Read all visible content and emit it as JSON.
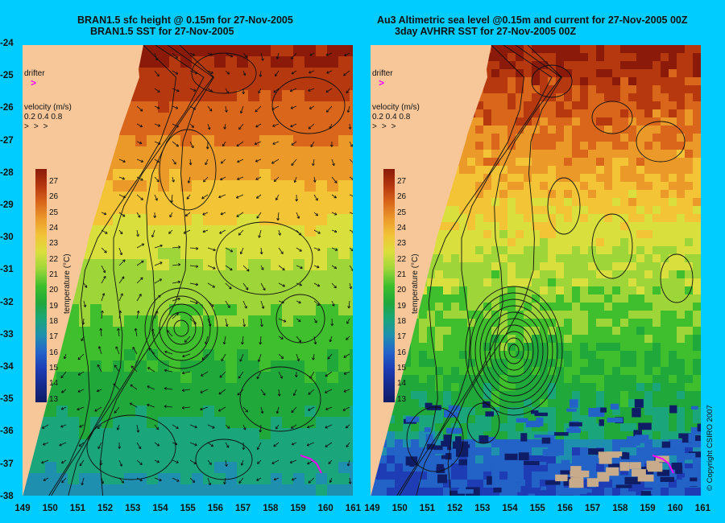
{
  "left_panel": {
    "title_line1": "BRAN1.5 sfc height @ 0.15m for 27-Nov-2005",
    "title_line2": "BRAN1.5 SST for 27-Nov-2005"
  },
  "right_panel": {
    "title_line1": "Au3 Altimetric sea level  @0.15m and current for 27-Nov-2005 00Z",
    "title_line2": "3day AVHRR SST for 27-Nov-2005 00Z"
  },
  "drifter_label": "drifter",
  "velocity": {
    "label": "velocity (m/s)",
    "values": "0.2 0.4 0.8"
  },
  "colorbar": {
    "label": "temperature (°C)",
    "ticks": [
      "27",
      "26",
      "25",
      "24",
      "23",
      "22",
      "21",
      "20",
      "19",
      "18",
      "17",
      "16",
      "15",
      "14",
      "13"
    ]
  },
  "latitudes": [
    "-24",
    "-25",
    "-26",
    "-27",
    "-28",
    "-29",
    "-30",
    "-31",
    "-32",
    "-33",
    "-34",
    "-35",
    "-36",
    "-37",
    "-38"
  ],
  "longitudes": [
    "149",
    "150",
    "151",
    "152",
    "153",
    "154",
    "155",
    "156",
    "157",
    "158",
    "159",
    "160",
    "161"
  ],
  "copyright": "© Copyright CSIRO 2007",
  "colors": {
    "background": "#00ccff",
    "land": "#f7c79a",
    "drifter": "#ff00ff"
  }
}
